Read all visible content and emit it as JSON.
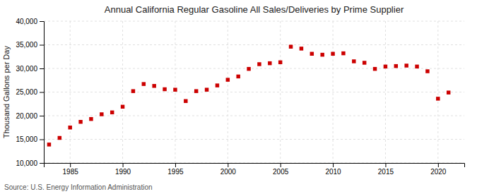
{
  "chart_data": {
    "type": "scatter",
    "title": "Annual California Regular Gasoline All Sales/Deliveries by Prime Supplier",
    "ylabel": "Thousand Gallons per Day",
    "annotations": [
      "Source: U.S. Energy Information Administration"
    ],
    "x": [
      1983,
      1984,
      1985,
      1986,
      1987,
      1988,
      1989,
      1990,
      1991,
      1992,
      1993,
      1994,
      1995,
      1996,
      1997,
      1998,
      1999,
      2000,
      2001,
      2002,
      2003,
      2004,
      2005,
      2006,
      2007,
      2008,
      2009,
      2010,
      2011,
      2012,
      2013,
      2014,
      2015,
      2016,
      2017,
      2018,
      2019,
      2020,
      2021
    ],
    "values": [
      13900,
      15300,
      17500,
      18700,
      19300,
      20300,
      20700,
      21900,
      25200,
      26700,
      26300,
      25600,
      25500,
      23100,
      25200,
      25500,
      26400,
      27600,
      28300,
      29900,
      30900,
      31100,
      31300,
      34600,
      34200,
      33100,
      32900,
      33100,
      33200,
      31500,
      31200,
      29900,
      30400,
      30500,
      30600,
      30400,
      29400,
      23600,
      24900
    ],
    "color": "#cc0000",
    "marker": "square",
    "xlim": [
      1982.5,
      2022.5
    ],
    "xticks": [
      1985,
      1990,
      1995,
      2000,
      2005,
      2010,
      2015,
      2020
    ],
    "ylim": [
      10000,
      40000
    ],
    "yticks": [
      {
        "value": 10000,
        "label": "10,000"
      },
      {
        "value": 15000,
        "label": "15,000"
      },
      {
        "value": 20000,
        "label": "20,000"
      },
      {
        "value": 25000,
        "label": "25,000"
      },
      {
        "value": 30000,
        "label": "30,000"
      },
      {
        "value": 35000,
        "label": "35,000"
      },
      {
        "value": 40000,
        "label": "40,000"
      }
    ],
    "grid": true
  }
}
